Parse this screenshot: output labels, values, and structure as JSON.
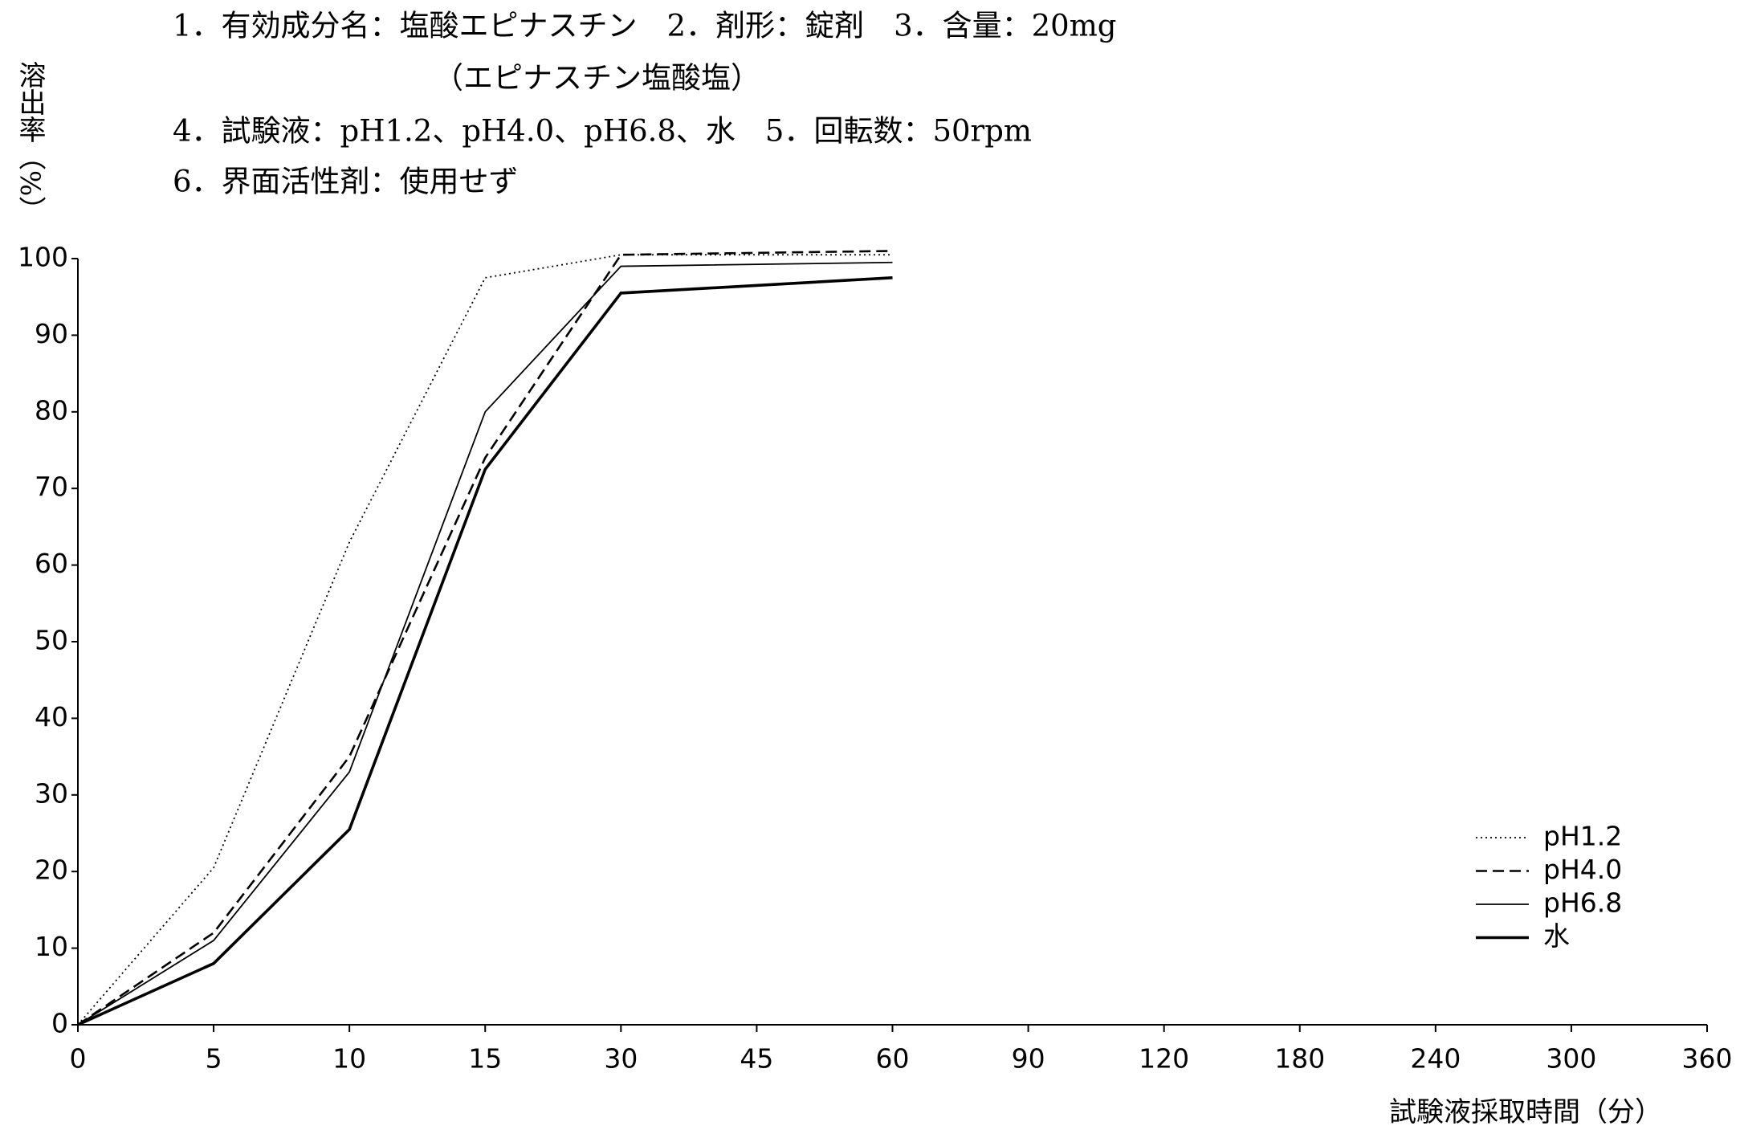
{
  "chart_data": {
    "type": "line",
    "header": [
      "1．有効成分名：塩酸エピナスチン　2．剤形：錠剤　3．含量：20mg",
      "（エピナスチン塩酸塩）",
      "4．試験液：pH1.2、pH4.0、pH6.8、水　5．回転数：50rpm",
      "6．界面活性剤：使用せず"
    ],
    "y_label": "溶出率（%）",
    "x_label": "試験液採取時間（分）",
    "x": [
      0,
      5,
      10,
      15,
      30,
      60
    ],
    "xlim": [
      0,
      360
    ],
    "xticks": [
      0,
      5,
      10,
      15,
      30,
      45,
      60,
      90,
      120,
      180,
      240,
      300,
      360
    ],
    "ylim": [
      0,
      100
    ],
    "yticks": [
      0,
      10,
      20,
      30,
      40,
      50,
      60,
      70,
      80,
      90,
      100
    ],
    "legend": "lower right",
    "series": [
      {
        "name": "pH1.2",
        "color": "#000000",
        "line_style": "dotted",
        "values": [
          0,
          20.5,
          63,
          97.5,
          100.5,
          100.5
        ]
      },
      {
        "name": "pH4.0",
        "color": "#000000",
        "line_style": "dashed",
        "values": [
          0,
          12,
          35,
          74,
          100.5,
          101
        ]
      },
      {
        "name": "pH6.8",
        "color": "#000000",
        "line_style": "solid",
        "values": [
          0,
          11,
          33,
          80,
          99,
          99.5
        ]
      },
      {
        "name": "水",
        "color": "#000000",
        "line_style": "bold",
        "values": [
          0,
          8,
          25.5,
          72.5,
          95.5,
          97.5
        ]
      }
    ]
  }
}
